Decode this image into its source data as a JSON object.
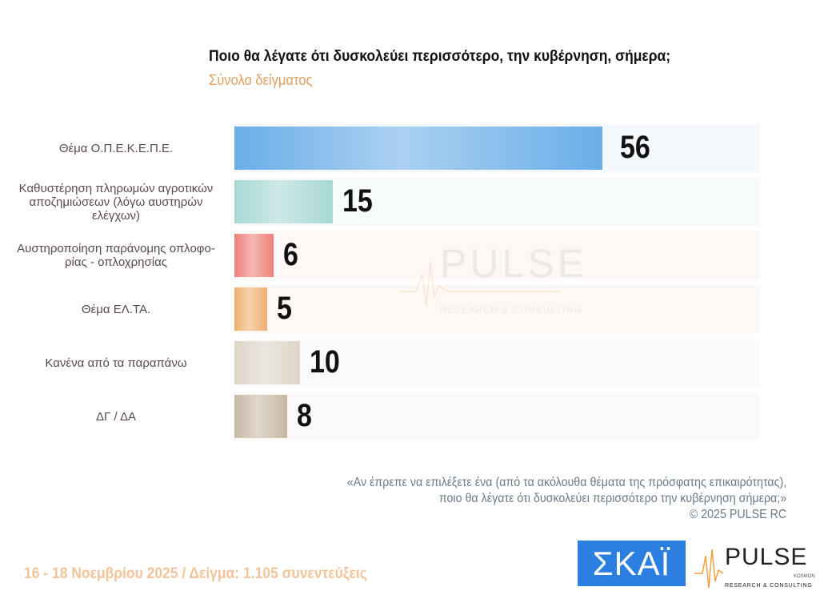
{
  "header": {
    "title": "Ποιο θα λέγατε ότι δυσκολεύει περισσότερο, την κυβέρνηση, σήμερα;",
    "subtitle": "Σύνολο δείγματος"
  },
  "chart_data": {
    "type": "bar",
    "orientation": "horizontal",
    "categories": [
      "Θέμα Ο.Π.Ε.Κ.Ε.Π.Ε.",
      "Καθυστέρηση πληρωμών αγροτικών αποζημιώσεων (λόγω αυστηρών ελέγχων)",
      "Αυστηροποίηση παράνομης οπλοφο-ρίας - οπλοχρησίας",
      "Θέμα ΕΛ.ΤΑ.",
      "Κανένα από τα παραπάνω",
      "ΔΓ / ΔΑ"
    ],
    "values": [
      56,
      15,
      6,
      5,
      10,
      8
    ],
    "colors": [
      "#6aaee8",
      "#a8d8d4",
      "#f0807a",
      "#f0b070",
      "#ddd5c8",
      "#c8b8a4"
    ],
    "row_bg_colors": [
      "#f4f8fc",
      "#f8fbfb",
      "#fdf8f5",
      "#fdf8f3",
      "#fbfbfa",
      "#fbfaf9"
    ],
    "grid": false
  },
  "note": {
    "line1": "«Αν έπρεπε να επιλέξετε ένα (από τα ακόλουθα θέματα της πρόσφατης επικαιρότητας),",
    "line2": "ποιο θα λέγατε ότι δυσκολεύει περισσότερο την κυβέρνηση σήμερα;»",
    "copyright": "©  2025  PULSE RC"
  },
  "footer": {
    "text": "16 - 18 Νοεμβρίου 2025  /  Δείγμα:  1.105 συνεντεύξεις"
  },
  "logos": {
    "skai": "ΣΚΑΪ",
    "pulse": "PULSE",
    "pulse_sub": "RESEARCH & CONSULTING",
    "pulse_tag": "KOSMON"
  }
}
